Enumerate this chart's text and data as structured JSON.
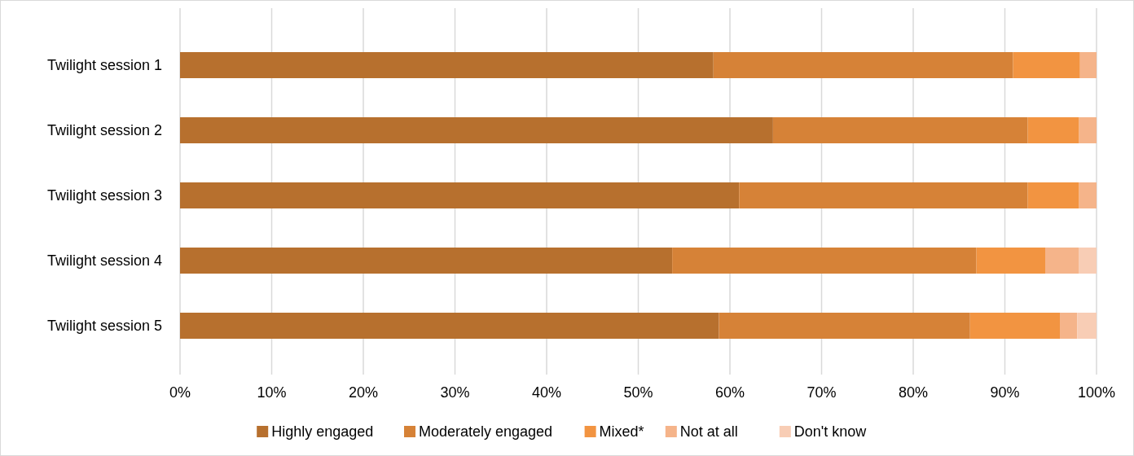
{
  "chart_data": {
    "type": "bar",
    "orientation": "horizontal",
    "stacked": true,
    "categories": [
      "Twilight session 1",
      "Twilight session 2",
      "Twilight session 3",
      "Twilight session 4",
      "Twilight session 5"
    ],
    "series": [
      {
        "name": "Highly engaged",
        "color": "#b7702e",
        "values": [
          58.2,
          64.7,
          61.0,
          53.7,
          58.8
        ]
      },
      {
        "name": "Moderately engaged",
        "color": "#d68237",
        "values": [
          32.7,
          27.8,
          31.5,
          33.2,
          27.4
        ]
      },
      {
        "name": "Mixed*",
        "color": "#f29441",
        "values": [
          7.3,
          5.6,
          5.6,
          7.5,
          9.8
        ]
      },
      {
        "name": "Not at all",
        "color": "#f5b48a",
        "values": [
          1.8,
          1.9,
          1.9,
          3.7,
          1.9
        ]
      },
      {
        "name": "Don't know",
        "color": "#f8cdb5",
        "values": [
          0,
          0,
          0,
          1.9,
          2.1
        ]
      }
    ],
    "xlim": [
      0,
      100
    ],
    "xticks": [
      {
        "value": 0,
        "label": "0%"
      },
      {
        "value": 10,
        "label": "10%"
      },
      {
        "value": 20,
        "label": "20%"
      },
      {
        "value": 30,
        "label": "30%"
      },
      {
        "value": 40,
        "label": "40%"
      },
      {
        "value": 50,
        "label": "50%"
      },
      {
        "value": 60,
        "label": "60%"
      },
      {
        "value": 70,
        "label": "70%"
      },
      {
        "value": 80,
        "label": "80%"
      },
      {
        "value": 90,
        "label": "90%"
      },
      {
        "value": 100,
        "label": "100%"
      }
    ],
    "grid": "x",
    "legend": "bottom"
  }
}
